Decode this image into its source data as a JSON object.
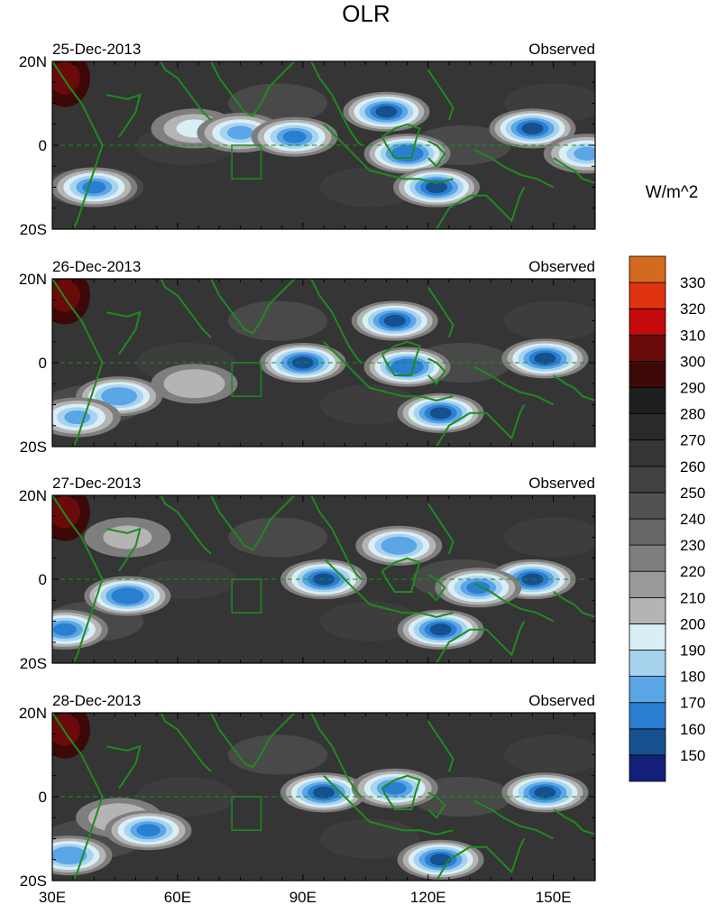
{
  "title": "OLR",
  "units_label": "W/m^2",
  "chart_data": {
    "type": "heatmap",
    "title": "OLR",
    "units": "W/m^2",
    "x_ticks": [
      "30E",
      "60E",
      "90E",
      "120E",
      "150E"
    ],
    "y_ticks": [
      "20N",
      "0",
      "20S"
    ],
    "lon_range": [
      30,
      160
    ],
    "lat_range": [
      -20,
      20
    ],
    "panels": [
      {
        "date": "25-Dec-2013",
        "label": "Observed"
      },
      {
        "date": "26-Dec-2013",
        "label": "Observed"
      },
      {
        "date": "27-Dec-2013",
        "label": "Observed"
      },
      {
        "date": "28-Dec-2013",
        "label": "Observed"
      }
    ],
    "colorbar": {
      "levels": [
        150,
        160,
        170,
        180,
        190,
        200,
        210,
        220,
        230,
        240,
        250,
        260,
        270,
        280,
        290,
        300,
        310,
        320,
        330
      ],
      "colors": [
        "#13207a",
        "#16508f",
        "#2a7fd1",
        "#5aa6e6",
        "#a8d3ef",
        "#d9eef5",
        "#b4b4b4",
        "#9a9a9a",
        "#7e7e7e",
        "#666666",
        "#525252",
        "#424242",
        "#353535",
        "#2a2a2a",
        "#1f1f1f",
        "#3d0808",
        "#6b0a0a",
        "#c40a0a",
        "#e0330f",
        "#d46a1f"
      ]
    },
    "features": [
      [
        {
          "lon": 33,
          "lat": 16,
          "value": 305
        },
        {
          "lon": 64,
          "lat": 4,
          "value": 195
        },
        {
          "lon": 75,
          "lat": 3,
          "value": 175
        },
        {
          "lon": 88,
          "lat": 2,
          "value": 165
        },
        {
          "lon": 110,
          "lat": 8,
          "value": 150
        },
        {
          "lon": 115,
          "lat": -2,
          "value": 160
        },
        {
          "lon": 122,
          "lat": -10,
          "value": 155
        },
        {
          "lon": 145,
          "lat": 4,
          "value": 150
        },
        {
          "lon": 40,
          "lat": -10,
          "value": 165
        },
        {
          "lon": 158,
          "lat": -2,
          "value": 175
        }
      ],
      [
        {
          "lon": 33,
          "lat": 16,
          "value": 300
        },
        {
          "lon": 64,
          "lat": -5,
          "value": 200
        },
        {
          "lon": 90,
          "lat": 0,
          "value": 155
        },
        {
          "lon": 112,
          "lat": 10,
          "value": 150
        },
        {
          "lon": 115,
          "lat": -1,
          "value": 160
        },
        {
          "lon": 123,
          "lat": -12,
          "value": 150
        },
        {
          "lon": 148,
          "lat": 1,
          "value": 150
        },
        {
          "lon": 46,
          "lat": -8,
          "value": 170
        },
        {
          "lon": 36,
          "lat": -13,
          "value": 175
        }
      ],
      [
        {
          "lon": 33,
          "lat": 16,
          "value": 300
        },
        {
          "lon": 48,
          "lat": 10,
          "value": 205
        },
        {
          "lon": 48,
          "lat": -4,
          "value": 160
        },
        {
          "lon": 33,
          "lat": -12,
          "value": 165
        },
        {
          "lon": 95,
          "lat": 0,
          "value": 150
        },
        {
          "lon": 113,
          "lat": 8,
          "value": 170
        },
        {
          "lon": 123,
          "lat": -12,
          "value": 150
        },
        {
          "lon": 145,
          "lat": 0,
          "value": 150
        },
        {
          "lon": 132,
          "lat": -2,
          "value": 165
        }
      ],
      [
        {
          "lon": 33,
          "lat": 16,
          "value": 300
        },
        {
          "lon": 46,
          "lat": -5,
          "value": 200
        },
        {
          "lon": 53,
          "lat": -8,
          "value": 165
        },
        {
          "lon": 95,
          "lat": 1,
          "value": 150
        },
        {
          "lon": 112,
          "lat": 2,
          "value": 165
        },
        {
          "lon": 123,
          "lat": -15,
          "value": 150
        },
        {
          "lon": 148,
          "lat": 1,
          "value": 150
        },
        {
          "lon": 34,
          "lat": -14,
          "value": 170
        }
      ]
    ]
  }
}
